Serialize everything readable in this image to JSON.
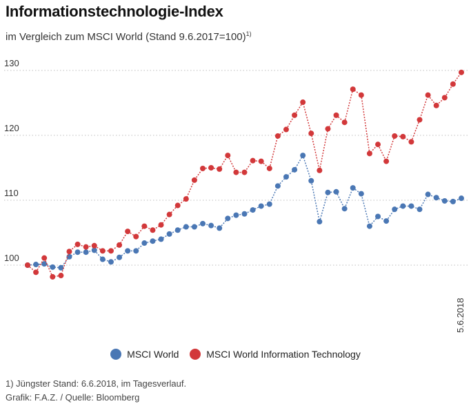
{
  "title": "Informationstechnologie-Index",
  "subtitle": "im Vergleich zum MSCI World (Stand 9.6.2017=100)",
  "subtitle_note": "1)",
  "footnote": "1) Jüngster Stand: 6.6.2018, im Tagesverlauf.",
  "source": "Grafik: F.A.Z. / Quelle: Bloomberg",
  "chart_data": {
    "type": "line",
    "title": "Informationstechnologie-Index",
    "xlabel": "",
    "ylabel": "",
    "ylim": [
      90,
      130
    ],
    "yticks": [
      100,
      110,
      120,
      130
    ],
    "x_tick_labels": [
      "5.6.2018"
    ],
    "grid": true,
    "legend_position": "bottom",
    "series": [
      {
        "name": "MSCI World",
        "color": "#4a77b4",
        "values": [
          100.0,
          100.1,
          100.2,
          99.7,
          99.6,
          101.3,
          102.0,
          102.0,
          102.3,
          100.9,
          100.5,
          101.2,
          102.2,
          102.2,
          103.4,
          103.7,
          104.0,
          104.8,
          105.4,
          105.9,
          105.9,
          106.4,
          106.1,
          105.7,
          107.2,
          107.7,
          107.9,
          108.5,
          109.1,
          109.4,
          112.2,
          113.6,
          114.7,
          116.9,
          113.0,
          106.7,
          111.2,
          111.3,
          108.7,
          111.9,
          111.0,
          106.0,
          107.5,
          106.8,
          108.6,
          109.1,
          109.1,
          108.6,
          110.9,
          110.4,
          109.9,
          109.8,
          110.3
        ]
      },
      {
        "name": "MSCI World Information Technology",
        "color": "#d2383a",
        "values": [
          100.0,
          98.9,
          101.1,
          98.2,
          98.4,
          102.1,
          103.2,
          102.8,
          103.0,
          102.2,
          102.2,
          103.1,
          105.2,
          104.4,
          106.0,
          105.4,
          106.2,
          107.8,
          109.2,
          110.2,
          113.1,
          114.9,
          115.0,
          114.8,
          116.9,
          114.3,
          114.3,
          116.1,
          116.0,
          114.9,
          119.9,
          120.9,
          123.1,
          125.1,
          120.3,
          114.6,
          121.0,
          123.1,
          122.0,
          127.1,
          126.2,
          117.2,
          118.6,
          116.0,
          119.9,
          119.8,
          119.0,
          122.4,
          126.2,
          124.6,
          125.8,
          127.9,
          129.7
        ]
      }
    ]
  }
}
